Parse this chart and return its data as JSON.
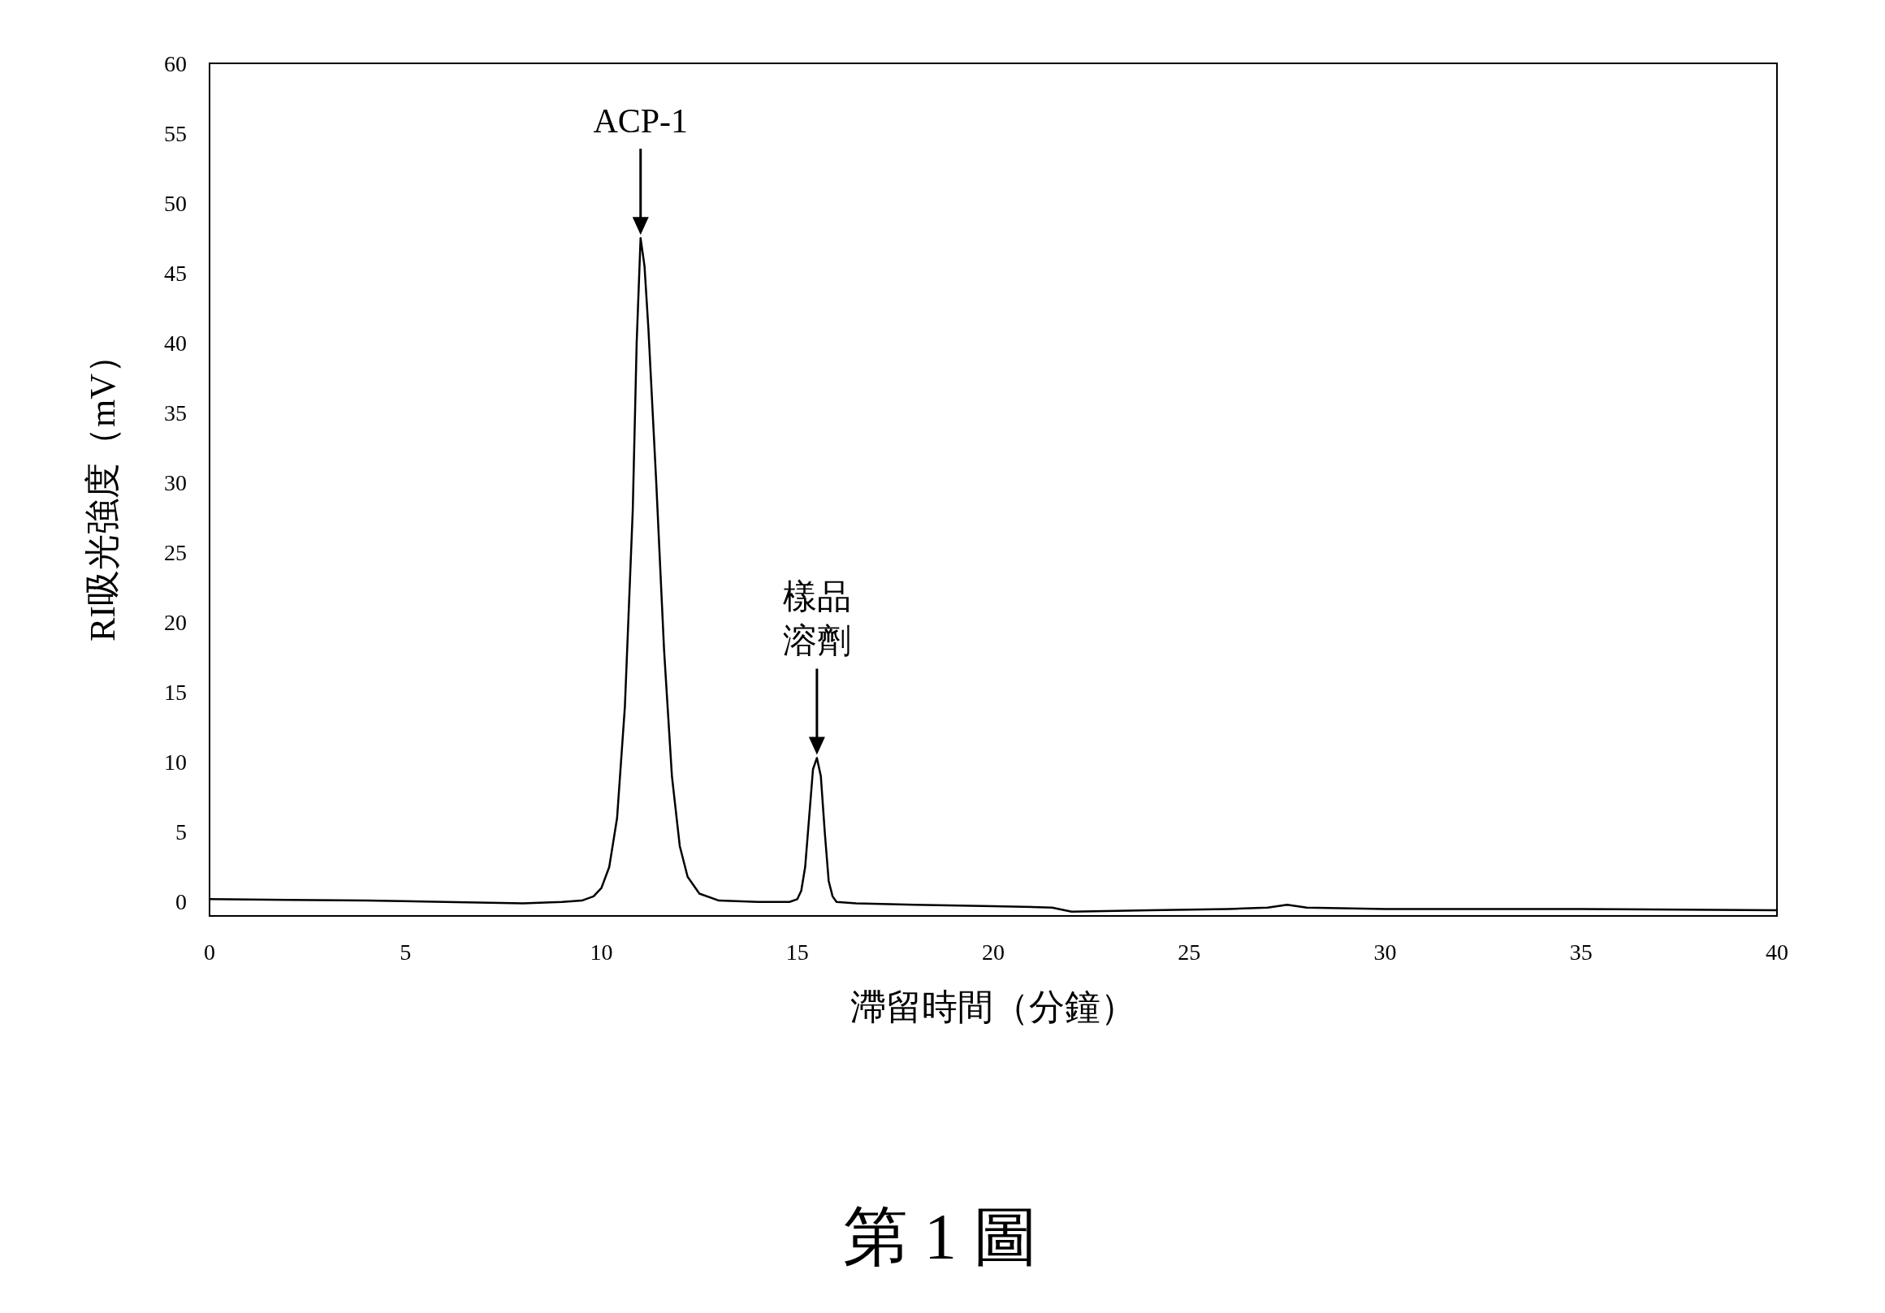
{
  "chart_data": {
    "type": "line",
    "title": "第 1 圖",
    "xlabel": "滯留時間（分鐘）",
    "ylabel": "RI吸光強度（mV）",
    "x": [
      0,
      2,
      4,
      6,
      8,
      9,
      9.5,
      9.8,
      10,
      10.2,
      10.4,
      10.6,
      10.8,
      10.9,
      11.0,
      11.1,
      11.2,
      11.4,
      11.6,
      11.8,
      12,
      12.2,
      12.5,
      13,
      14,
      14.8,
      15.0,
      15.1,
      15.2,
      15.3,
      15.4,
      15.5,
      15.6,
      15.7,
      15.8,
      15.9,
      16,
      16.5,
      18,
      20,
      21.5,
      22,
      24,
      26,
      27,
      27.5,
      28,
      30,
      35,
      40
    ],
    "series": [
      {
        "color": "#000000",
        "values": [
          0.2,
          0.15,
          0.1,
          0,
          -0.1,
          0,
          0.1,
          0.4,
          1,
          2.5,
          6,
          14,
          28,
          40,
          47.5,
          45.5,
          41,
          30,
          18,
          9,
          4,
          1.8,
          0.6,
          0.1,
          0,
          0,
          0.2,
          0.8,
          2.5,
          6,
          9.5,
          10.3,
          9,
          5,
          1.5,
          0.4,
          0,
          -0.1,
          -0.2,
          -0.3,
          -0.4,
          -0.7,
          -0.6,
          -0.5,
          -0.4,
          -0.2,
          -0.4,
          -0.5,
          -0.5,
          -0.6
        ]
      }
    ],
    "xlim": [
      0,
      40
    ],
    "xticks": [
      0,
      5,
      10,
      15,
      20,
      25,
      30,
      35,
      40
    ],
    "ylim": [
      -1,
      60
    ],
    "yticks": [
      0,
      5,
      10,
      15,
      20,
      25,
      30,
      35,
      40,
      45,
      50,
      55,
      60
    ],
    "grid": false,
    "marker": "none",
    "line_style": "solid",
    "annotations": [
      {
        "text": "ACP-1",
        "x": 11.0,
        "y": 47.5
      },
      {
        "text": "樣品溶劑",
        "x": 15.5,
        "y": 10.3
      }
    ]
  }
}
